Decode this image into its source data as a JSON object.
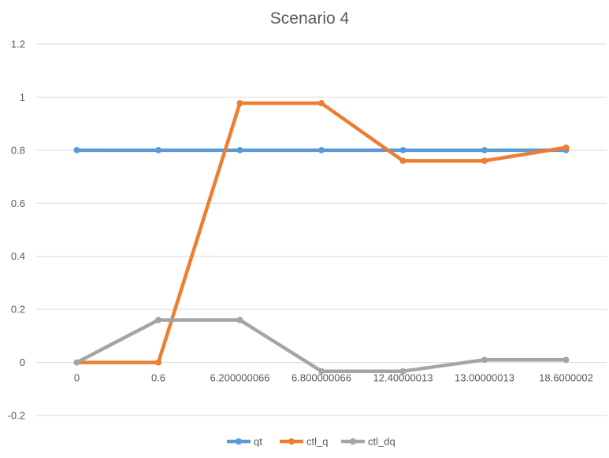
{
  "chart_data": {
    "type": "line",
    "title": "Scenario 4",
    "categories": [
      "0",
      "0.6",
      "6.200000066",
      "6.800000066",
      "12.40000013",
      "13.00000013",
      "18.6000002"
    ],
    "y_ticks": [
      "1.2",
      "1",
      "0.8",
      "0.6",
      "0.4",
      "0.2",
      "0",
      "-0.2"
    ],
    "ylim": [
      -0.2,
      1.2
    ],
    "grid": true,
    "legend_position": "bottom",
    "series": [
      {
        "name": "qt",
        "color": "#5b9bd5",
        "values": [
          0.8,
          0.8,
          0.8,
          0.8,
          0.8,
          0.8,
          0.8
        ]
      },
      {
        "name": "ctl_q",
        "color": "#ed7d31",
        "values": [
          0,
          0,
          0.977,
          0.977,
          0.76,
          0.76,
          0.81
        ]
      },
      {
        "name": "ctl_dq",
        "color": "#a5a5a5",
        "values": [
          0,
          0.16,
          0.16,
          -0.033,
          -0.033,
          0.01,
          0.01
        ]
      }
    ]
  }
}
